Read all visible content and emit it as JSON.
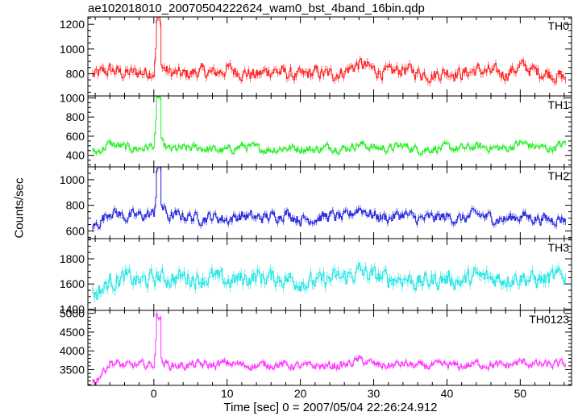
{
  "title": "ae102018010_20070504222624_wam0_bst_4band_16bin.qdp",
  "xlabel": "Time [sec] 0 = 2007/05/04 22:26:24.912",
  "ylabel": "Counts/sec",
  "chart_data": {
    "type": "line",
    "subtype": "stacked time-series panels with error bars",
    "title": "ae102018010_20070504222624_wam0_bst_4band_16bin.qdp",
    "xlabel": "Time [sec] 0 = 2007/05/04 22:26:24.912",
    "ylabel": "Counts/sec",
    "xlim": [
      -9,
      57
    ],
    "xticks": [
      0,
      10,
      20,
      30,
      40,
      50
    ],
    "grid": false,
    "legend": "none",
    "panels": [
      {
        "name": "TH0",
        "color": "#ff2020",
        "ylim": [
          620,
          1260
        ],
        "yticks": [
          800,
          1000,
          1200
        ],
        "baseline": 800,
        "noise": 55,
        "spike_peak": 1230,
        "x": [
          -8,
          -6,
          -4,
          -2,
          0,
          0.5,
          1,
          2,
          4,
          6,
          8,
          10,
          12,
          14,
          16,
          18,
          20,
          22,
          24,
          26,
          28,
          30,
          32,
          34,
          36,
          38,
          40,
          42,
          44,
          46,
          48,
          50,
          52,
          54,
          56
        ],
        "values": [
          790,
          830,
          800,
          810,
          820,
          1230,
          860,
          810,
          790,
          820,
          800,
          840,
          810,
          790,
          830,
          800,
          780,
          810,
          790,
          820,
          880,
          830,
          800,
          840,
          810,
          790,
          820,
          800,
          830,
          810,
          800,
          860,
          820,
          800,
          770
        ]
      },
      {
        "name": "TH1",
        "color": "#22ee22",
        "ylim": [
          280,
          1020
        ],
        "yticks": [
          400,
          600,
          800,
          1000
        ],
        "baseline": 480,
        "noise": 45,
        "spike_peak": 1000,
        "x": [
          -8,
          -6,
          -4,
          -2,
          0,
          0.5,
          1,
          2,
          4,
          6,
          8,
          10,
          12,
          14,
          16,
          18,
          20,
          22,
          24,
          26,
          28,
          30,
          32,
          34,
          36,
          38,
          40,
          42,
          44,
          46,
          48,
          50,
          52,
          54,
          56
        ],
        "values": [
          430,
          520,
          480,
          470,
          500,
          1000,
          520,
          460,
          470,
          480,
          460,
          450,
          500,
          470,
          460,
          480,
          470,
          460,
          490,
          470,
          520,
          480,
          470,
          500,
          460,
          470,
          480,
          470,
          490,
          480,
          470,
          530,
          490,
          470,
          520
        ]
      },
      {
        "name": "TH2",
        "color": "#2222dd",
        "ylim": [
          540,
          1100
        ],
        "yticks": [
          600,
          800,
          1000
        ],
        "baseline": 700,
        "noise": 45,
        "spike_peak": 1090,
        "x": [
          -8,
          -6,
          -4,
          -2,
          0,
          0.5,
          1,
          2,
          4,
          6,
          8,
          10,
          12,
          14,
          16,
          18,
          20,
          22,
          24,
          26,
          28,
          30,
          32,
          34,
          36,
          38,
          40,
          42,
          44,
          46,
          48,
          50,
          52,
          54,
          56
        ],
        "values": [
          640,
          760,
          710,
          720,
          730,
          1090,
          800,
          710,
          720,
          700,
          710,
          690,
          720,
          700,
          710,
          740,
          690,
          700,
          720,
          700,
          780,
          720,
          700,
          730,
          690,
          700,
          710,
          690,
          730,
          700,
          690,
          720,
          700,
          690,
          700
        ]
      },
      {
        "name": "TH3",
        "color": "#22e5e5",
        "ylim": [
          1390,
          1960
        ],
        "yticks": [
          1400,
          1600,
          1800
        ],
        "baseline": 1640,
        "noise": 70,
        "spike_peak": 0,
        "x": [
          -8,
          -6,
          -4,
          -2,
          0,
          0.5,
          1,
          2,
          4,
          6,
          8,
          10,
          12,
          14,
          16,
          18,
          20,
          22,
          24,
          26,
          28,
          30,
          32,
          34,
          36,
          38,
          40,
          42,
          44,
          46,
          48,
          50,
          52,
          54,
          56
        ],
        "values": [
          1520,
          1620,
          1650,
          1620,
          1640,
          1660,
          1650,
          1640,
          1660,
          1640,
          1650,
          1620,
          1640,
          1660,
          1650,
          1640,
          1620,
          1610,
          1640,
          1650,
          1700,
          1660,
          1640,
          1650,
          1610,
          1630,
          1640,
          1620,
          1660,
          1640,
          1650,
          1660,
          1630,
          1640,
          1660
        ]
      },
      {
        "name": "TH0123",
        "color": "#ff33ff",
        "ylim": [
          3080,
          5080
        ],
        "yticks": [
          3500,
          4000,
          4500,
          5000
        ],
        "baseline": 3600,
        "noise": 110,
        "spike_peak": 4950,
        "x": [
          -8,
          -6,
          -4,
          -2,
          0,
          0.5,
          1,
          2,
          4,
          6,
          8,
          10,
          12,
          14,
          16,
          18,
          20,
          22,
          24,
          26,
          28,
          30,
          32,
          34,
          36,
          38,
          40,
          42,
          44,
          46,
          48,
          50,
          52,
          54,
          56
        ],
        "values": [
          3200,
          3700,
          3600,
          3620,
          3640,
          4950,
          3700,
          3620,
          3600,
          3640,
          3610,
          3680,
          3620,
          3600,
          3640,
          3620,
          3580,
          3600,
          3590,
          3620,
          3760,
          3640,
          3600,
          3660,
          3590,
          3600,
          3620,
          3580,
          3660,
          3620,
          3600,
          3700,
          3640,
          3620,
          3650
        ]
      }
    ]
  }
}
